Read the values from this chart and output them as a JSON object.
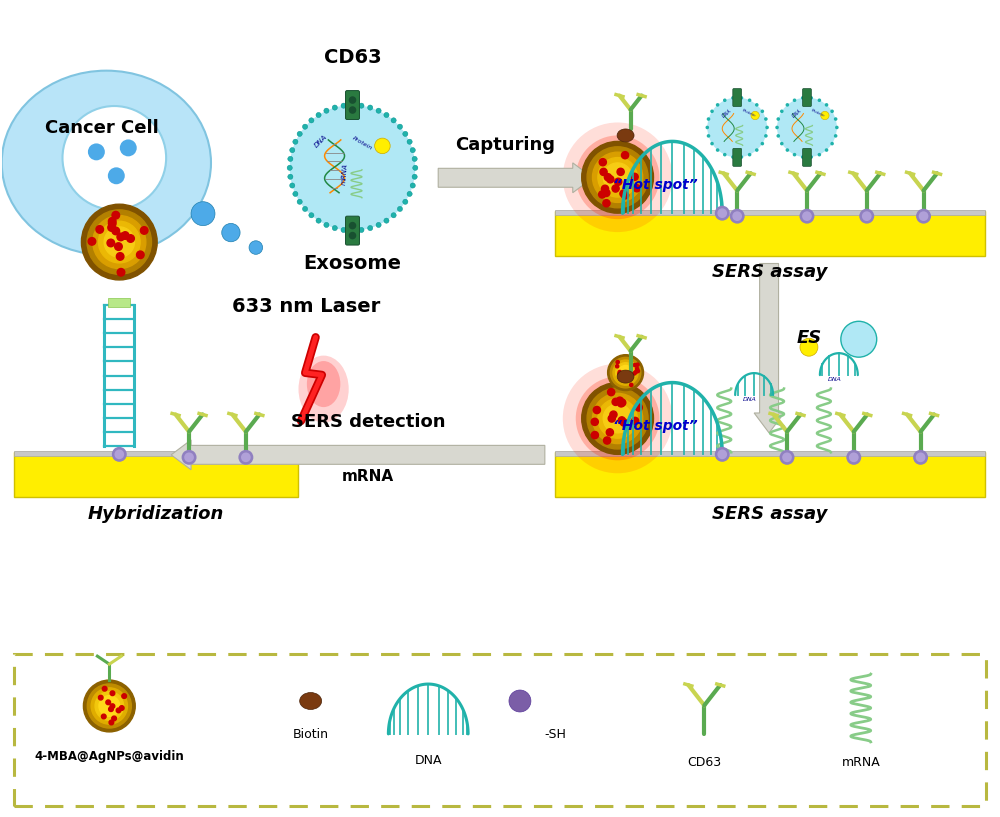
{
  "background_color": "#ffffff",
  "cancer_cell_color": "#add8e6",
  "exosome_color": "#b0e8f5",
  "exosome_membrane_color": "#20b2aa",
  "cd63_color": "#2e8b57",
  "yellow_bar_color": "#ffee00",
  "sers_text": "SERS assay",
  "hybridization_text": "Hybridization",
  "capturing_text": "Capturing",
  "es_text": "ES",
  "sers_detection_text": "SERS detection",
  "mrna_text": "mRNA",
  "hot_spot_text": "“Hot spot”",
  "cancer_cell_text": "Cancer Cell",
  "exosome_text": "Exosome",
  "cd63_label": "CD63",
  "laser_text": "633 nm Laser",
  "legend_items": [
    "4-MBA@AgNPs@avidin",
    "Biotin",
    "DNA",
    "-SH",
    "CD63",
    "mRNA"
  ],
  "dashed_box_color": "#b8b840",
  "red_dot_color": "#cc0000",
  "teal_arch_color": "#20b2aa",
  "purple_dot_color": "#7b5ea7",
  "antibody_green": "#5aaa50",
  "antibody_yellow_green": "#c8d450",
  "purple_anchor": "#9080c0",
  "spring_color": "#88cc88",
  "gray_surface_color": "#c8c8c8",
  "arrow_fill_color": "#d8d8d0",
  "arrow_edge_color": "#b0b0a0"
}
